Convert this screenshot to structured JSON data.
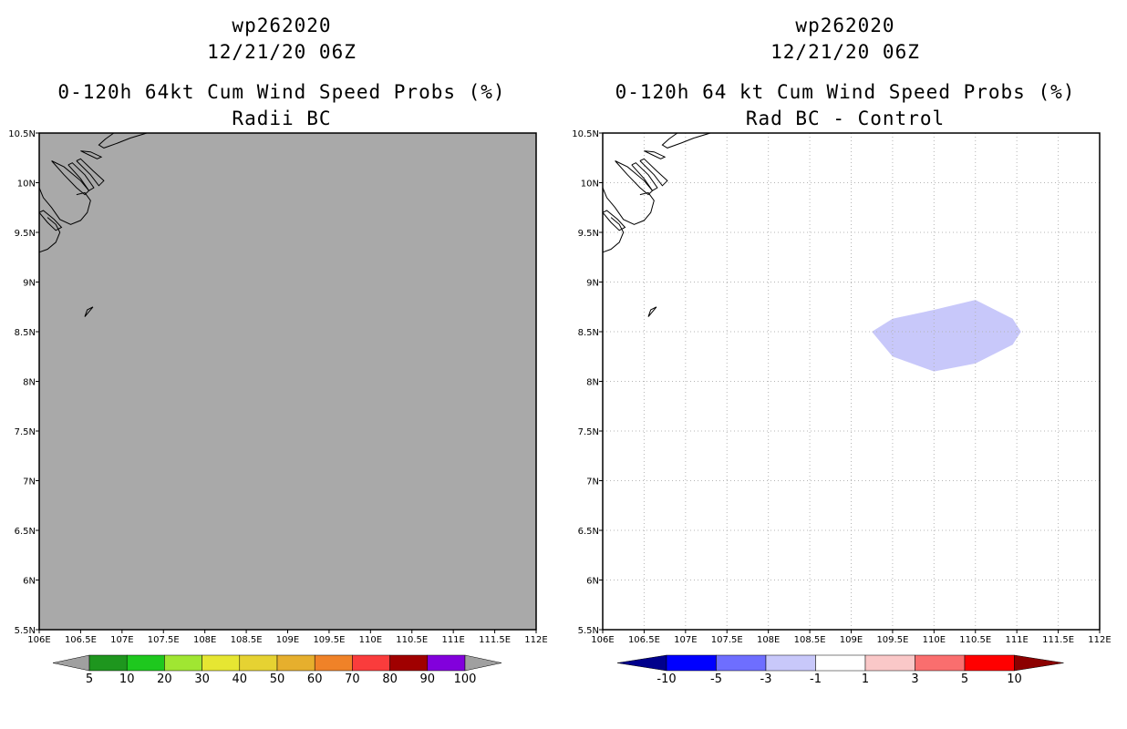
{
  "chart_data": [
    {
      "type": "heatmap",
      "storm_id": "wp262020",
      "datetime": "12/21/20 06Z",
      "title": "0-120h 64kt Cum Wind Speed Probs (%)",
      "subtitle": "Radii BC",
      "lon_range": [
        106,
        112
      ],
      "lat_range": [
        5.5,
        10.5
      ],
      "x_ticks": [
        "106E",
        "106.5E",
        "107E",
        "107.5E",
        "108E",
        "108.5E",
        "109E",
        "109.5E",
        "110E",
        "110.5E",
        "111E",
        "111.5E",
        "112E"
      ],
      "y_ticks": [
        "5.5N",
        "6N",
        "6.5N",
        "7N",
        "7.5N",
        "8N",
        "8.5N",
        "9N",
        "9.5N",
        "10N",
        "10.5N"
      ],
      "grid": false,
      "field": "no data (uniform gray fill)",
      "fill_color": "#a9a9a9",
      "colorbar": {
        "labels": [
          "5",
          "10",
          "20",
          "30",
          "40",
          "50",
          "60",
          "70",
          "80",
          "90",
          "100"
        ],
        "colors": [
          "#a0a0a0",
          "#1e961e",
          "#1ec81e",
          "#a0e632",
          "#e6e632",
          "#e6d232",
          "#e6af2d",
          "#f08228",
          "#fa3c3c",
          "#a00000",
          "#8200dc",
          "#a0a0a0"
        ]
      }
    },
    {
      "type": "heatmap",
      "storm_id": "wp262020",
      "datetime": "12/21/20 06Z",
      "title": "0-120h 64 kt Cum Wind Speed Probs (%)",
      "subtitle": "Rad BC - Control",
      "lon_range": [
        106,
        112
      ],
      "lat_range": [
        5.5,
        10.5
      ],
      "x_ticks": [
        "106E",
        "106.5E",
        "107E",
        "107.5E",
        "108E",
        "108.5E",
        "109E",
        "109.5E",
        "110E",
        "110.5E",
        "111E",
        "111.5E",
        "112E"
      ],
      "y_ticks": [
        "5.5N",
        "6N",
        "6.5N",
        "7N",
        "7.5N",
        "8N",
        "8.5N",
        "9N",
        "9.5N",
        "10N",
        "10.5N"
      ],
      "grid": true,
      "shaded_regions": [
        {
          "range": "-3 to -1",
          "color": "#c8c8fa",
          "polygon_lonlat": [
            [
              109.25,
              8.5
            ],
            [
              109.5,
              8.63
            ],
            [
              110.0,
              8.72
            ],
            [
              110.5,
              8.82
            ],
            [
              110.95,
              8.63
            ],
            [
              111.05,
              8.5
            ],
            [
              110.95,
              8.37
            ],
            [
              110.5,
              8.18
            ],
            [
              110.0,
              8.1
            ],
            [
              109.5,
              8.25
            ]
          ]
        }
      ],
      "colorbar": {
        "labels": [
          "-10",
          "-5",
          "-3",
          "-1",
          "1",
          "3",
          "5",
          "10"
        ],
        "colors": [
          "#00008c",
          "#0000ff",
          "#6e6eff",
          "#c8c8fa",
          "#ffffff",
          "#fac8c8",
          "#fa6e6e",
          "#ff0000",
          "#8c0000"
        ]
      }
    }
  ]
}
